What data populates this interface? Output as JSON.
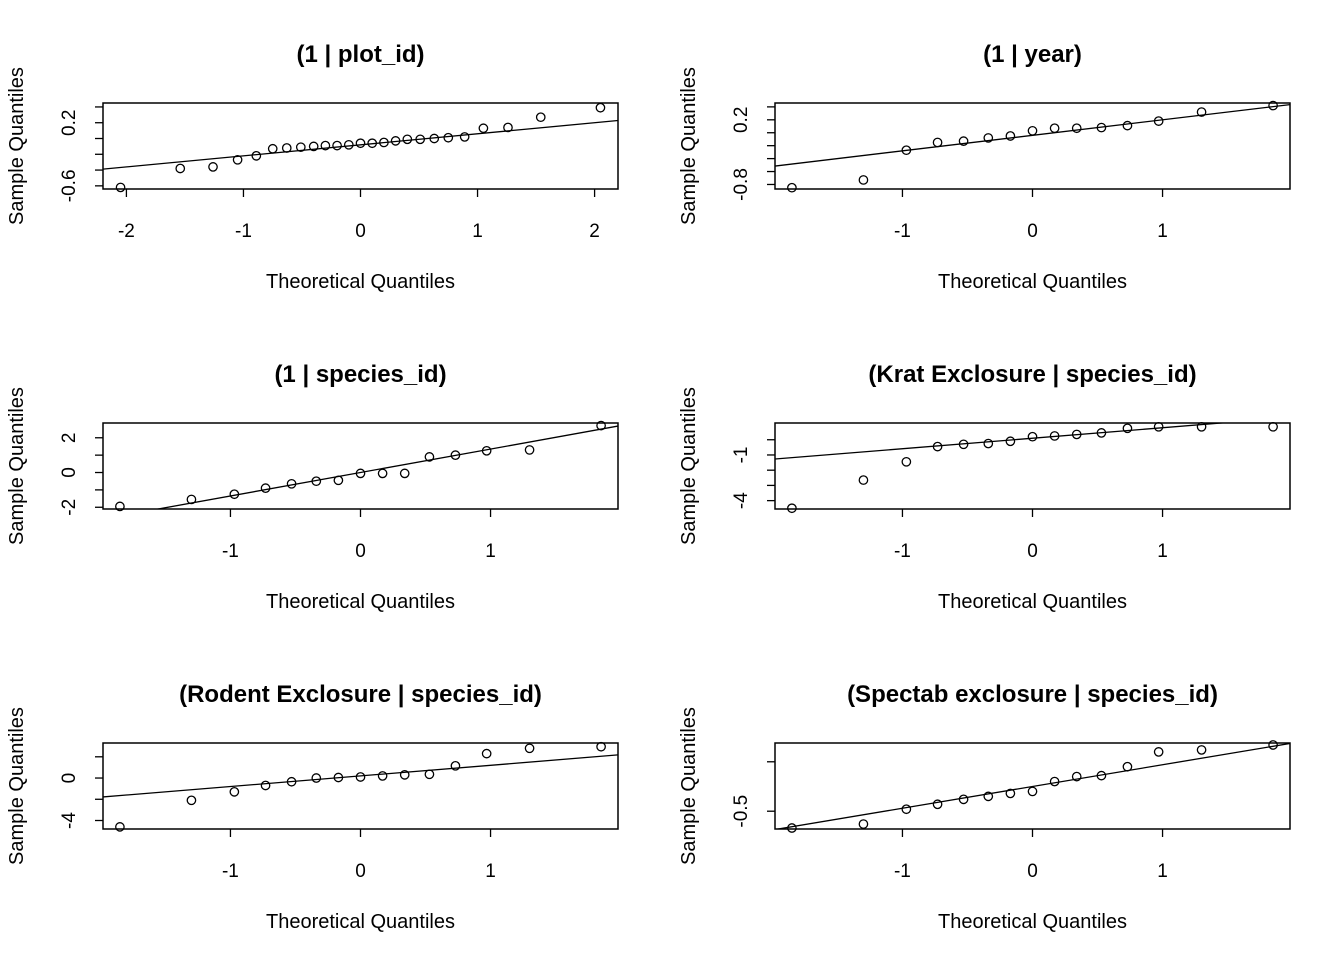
{
  "chart_data": [
    {
      "type": "scatter",
      "title": "(1 | plot_id)",
      "xlabel": "Theoretical Quantiles",
      "ylabel": "Sample Quantiles",
      "xlim": [
        -2.2,
        2.2
      ],
      "ylim": [
        -0.64,
        0.45
      ],
      "xticks": [
        -2,
        -1,
        0,
        1,
        2
      ],
      "xtick_labels": [
        "-2",
        "-1",
        "0",
        "1",
        "2"
      ],
      "yticks": [
        -0.6,
        -0.4,
        -0.2,
        0.0,
        0.2,
        0.4
      ],
      "ytick_labels": [
        "-0.6",
        "",
        "",
        "",
        "0.2",
        ""
      ],
      "x": [
        -2.05,
        -1.54,
        -1.26,
        -1.05,
        -0.89,
        -0.75,
        -0.63,
        -0.51,
        -0.4,
        -0.3,
        -0.2,
        -0.1,
        0.0,
        0.1,
        0.2,
        0.3,
        0.4,
        0.51,
        0.63,
        0.75,
        0.89,
        1.05,
        1.26,
        1.54,
        2.05
      ],
      "y": [
        -0.62,
        -0.38,
        -0.36,
        -0.27,
        -0.22,
        -0.13,
        -0.12,
        -0.11,
        -0.1,
        -0.09,
        -0.09,
        -0.08,
        -0.06,
        -0.06,
        -0.05,
        -0.03,
        -0.01,
        -0.01,
        0.0,
        0.01,
        0.02,
        0.13,
        0.14,
        0.27,
        0.39
      ],
      "qqline": {
        "intercept": -0.08,
        "slope": 0.14
      }
    },
    {
      "type": "scatter",
      "title": "(1 | year)",
      "xlabel": "Theoretical Quantiles",
      "ylabel": "Sample Quantiles",
      "xlim": [
        -1.98,
        1.98
      ],
      "ylim": [
        -0.87,
        0.46
      ],
      "xticks": [
        -1,
        0,
        1
      ],
      "xtick_labels": [
        "-1",
        "0",
        "1"
      ],
      "yticks": [
        -0.8,
        -0.6,
        -0.4,
        -0.2,
        0.0,
        0.2,
        0.4
      ],
      "ytick_labels": [
        "-0.8",
        "",
        "",
        "",
        "",
        "0.2",
        ""
      ],
      "x": [
        -1.85,
        -1.3,
        -0.97,
        -0.73,
        -0.53,
        -0.34,
        -0.17,
        0.0,
        0.17,
        0.34,
        0.53,
        0.73,
        0.97,
        1.3,
        1.85
      ],
      "y": [
        -0.85,
        -0.73,
        -0.27,
        -0.15,
        -0.13,
        -0.08,
        -0.05,
        0.03,
        0.07,
        0.07,
        0.08,
        0.11,
        0.18,
        0.32,
        0.42
      ],
      "qqline": {
        "intercept": -0.04,
        "slope": 0.24
      }
    },
    {
      "type": "scatter",
      "title": "(1 | species_id)",
      "xlabel": "Theoretical Quantiles",
      "ylabel": "Sample Quantiles",
      "xlim": [
        -1.98,
        1.98
      ],
      "ylim": [
        -2.1,
        2.85
      ],
      "xticks": [
        -1,
        0,
        1
      ],
      "xtick_labels": [
        "-1",
        "0",
        "1"
      ],
      "yticks": [
        -2,
        -1,
        0,
        1,
        2
      ],
      "ytick_labels": [
        "-2",
        "",
        "0",
        "",
        "2"
      ],
      "x": [
        -1.85,
        -1.3,
        -0.97,
        -0.73,
        -0.53,
        -0.34,
        -0.17,
        0.0,
        0.17,
        0.34,
        0.53,
        0.73,
        0.97,
        1.3,
        1.85
      ],
      "y": [
        -1.95,
        -1.55,
        -1.25,
        -0.9,
        -0.65,
        -0.5,
        -0.45,
        -0.05,
        -0.05,
        -0.05,
        0.9,
        1.0,
        1.25,
        1.3,
        2.7
      ],
      "qqline": {
        "intercept": 0.0,
        "slope": 1.35
      }
    },
    {
      "type": "scatter",
      "title": "(Krat Exclosure | species_id)",
      "xlabel": "Theoretical Quantiles",
      "ylabel": "Sample Quantiles",
      "xlim": [
        -1.98,
        1.98
      ],
      "ylim": [
        -4.55,
        1.1
      ],
      "xticks": [
        -1,
        0,
        1
      ],
      "xtick_labels": [
        "-1",
        "0",
        "1"
      ],
      "yticks": [
        -4,
        -3,
        -2,
        -1,
        0
      ],
      "ytick_labels": [
        "-4",
        "",
        "",
        "-1",
        ""
      ],
      "x": [
        -1.85,
        -1.3,
        -0.97,
        -0.73,
        -0.53,
        -0.34,
        -0.17,
        0.0,
        0.17,
        0.34,
        0.53,
        0.73,
        0.97,
        1.3,
        1.85
      ],
      "y": [
        -4.5,
        -2.65,
        -1.45,
        -0.45,
        -0.3,
        -0.25,
        -0.1,
        0.2,
        0.25,
        0.35,
        0.45,
        0.75,
        0.85,
        0.85,
        0.85
      ],
      "qqline": {
        "intercept": 0.1,
        "slope": 0.69
      }
    },
    {
      "type": "scatter",
      "title": "(Rodent Exclosure | species_id)",
      "xlabel": "Theoretical Quantiles",
      "ylabel": "Sample Quantiles",
      "xlim": [
        -1.98,
        1.98
      ],
      "ylim": [
        -4.8,
        3.3
      ],
      "xticks": [
        -1,
        0,
        1
      ],
      "xtick_labels": [
        "-1",
        "0",
        "1"
      ],
      "yticks": [
        -4,
        -2,
        0,
        2
      ],
      "ytick_labels": [
        "-4",
        "",
        "0",
        ""
      ],
      "x": [
        -1.85,
        -1.3,
        -0.97,
        -0.73,
        -0.53,
        -0.34,
        -0.17,
        0.0,
        0.17,
        0.34,
        0.53,
        0.73,
        0.97,
        1.3,
        1.85
      ],
      "y": [
        -4.6,
        -2.1,
        -1.3,
        -0.7,
        -0.35,
        0.0,
        0.05,
        0.1,
        0.2,
        0.3,
        0.35,
        1.15,
        2.3,
        2.8,
        2.95
      ],
      "qqline": {
        "intercept": 0.2,
        "slope": 1.0
      }
    },
    {
      "type": "scatter",
      "title": "(Spectab exclosure | species_id)",
      "xlabel": "Theoretical Quantiles",
      "ylabel": "Sample Quantiles",
      "xlim": [
        -1.98,
        1.98
      ],
      "ylim": [
        -0.68,
        0.19
      ],
      "xticks": [
        -1,
        0,
        1
      ],
      "xtick_labels": [
        "-1",
        "0",
        "1"
      ],
      "yticks": [
        -0.5,
        0.0
      ],
      "ytick_labels": [
        "-0.5",
        ""
      ],
      "x": [
        -1.85,
        -1.3,
        -0.97,
        -0.73,
        -0.53,
        -0.34,
        -0.17,
        0.0,
        0.17,
        0.34,
        0.53,
        0.73,
        0.97,
        1.3,
        1.85
      ],
      "y": [
        -0.67,
        -0.63,
        -0.48,
        -0.43,
        -0.38,
        -0.35,
        -0.32,
        -0.3,
        -0.2,
        -0.15,
        -0.14,
        -0.05,
        0.1,
        0.12,
        0.17
      ],
      "qqline": {
        "intercept": -0.25,
        "slope": 0.22
      }
    }
  ]
}
